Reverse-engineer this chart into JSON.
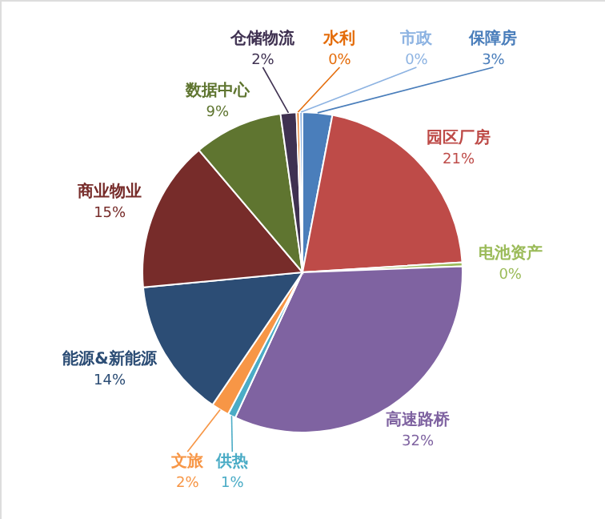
{
  "chart_data": {
    "type": "pie",
    "categories": [
      "保障房",
      "园区厂房",
      "电池资产",
      "高速路桥",
      "供热",
      "文旅",
      "能源&新能源",
      "商业物业",
      "数据中心",
      "仓储物流",
      "水利",
      "市政"
    ],
    "values": [
      3,
      21,
      0.4,
      32.5,
      0.8,
      1.8,
      14,
      15.3,
      9,
      1.6,
      0.3,
      0.3
    ],
    "value_labels": [
      "3%",
      "21%",
      "0%",
      "32%",
      "1%",
      "2%",
      "14%",
      "15%",
      "9%",
      "2%",
      "0%",
      "0%"
    ],
    "colors": [
      "#4a7ebb",
      "#be4b48",
      "#9bbb59",
      "#7f63a1",
      "#4bacc6",
      "#f79646",
      "#2c4d75",
      "#772c2a",
      "#5f7530",
      "#3f3151",
      "#e46c0a",
      "#8db3e2"
    ]
  }
}
